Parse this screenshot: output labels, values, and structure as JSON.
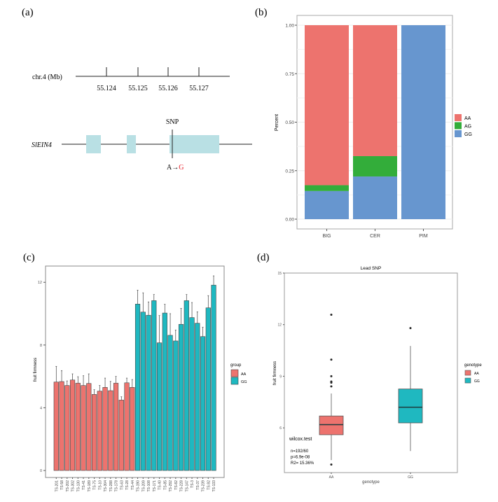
{
  "panel_labels": {
    "a": "(a)",
    "b": "(b)",
    "c": "(c)",
    "d": "(d)"
  },
  "gene_model": {
    "chromosome_label": "chr.4 (Mb)",
    "ticks": [
      "55.124",
      "55.125",
      "55.126",
      "55.127"
    ],
    "gene_name": "SlEIN4",
    "snp_label": "SNP",
    "allele_ref": "A",
    "arrow": "→",
    "allele_alt": "G",
    "exon_color": "#b9e0e4",
    "alt_color": "#e8202a"
  },
  "chart_data": [
    {
      "panel": "b",
      "type": "bar",
      "stacked": true,
      "categories": [
        "BIG",
        "CER",
        "PIM"
      ],
      "ylabel": "Percent",
      "ylim": [
        0,
        1
      ],
      "yticks": [
        "0.00",
        "0.25",
        "0.50",
        "0.75",
        "1.00"
      ],
      "grid": true,
      "legend_position": "right",
      "series": [
        {
          "name": "GG",
          "color": "#6796cf",
          "values": [
            0.145,
            0.22,
            1.0
          ]
        },
        {
          "name": "AG",
          "color": "#33ad3a",
          "values": [
            0.03,
            0.105,
            0.0
          ]
        },
        {
          "name": "AA",
          "color": "#ed736e",
          "values": [
            0.825,
            0.675,
            0.0
          ]
        }
      ],
      "legend_order": [
        "AA",
        "AG",
        "GG"
      ]
    },
    {
      "panel": "c",
      "type": "bar",
      "ylabel": "fruit firmness",
      "ylim": [
        0,
        13
      ],
      "yticks": [
        0,
        4,
        8,
        12
      ],
      "grid": false,
      "legend_title": "group",
      "legend_position": "right",
      "groups": [
        {
          "name": "AA",
          "color": "#ed736e"
        },
        {
          "name": "GG",
          "color": "#1fb8c0"
        }
      ],
      "categories": [
        "TS-201",
        "TS-58",
        "TS-202",
        "TS-302",
        "TS-130",
        "TS-41",
        "TS-189",
        "TS-75",
        "TS-10",
        "TS-304",
        "TS-288",
        "TS-178",
        "TS-63",
        "TS-28",
        "TS-44",
        "TS-190",
        "TS-209",
        "TS-108",
        "TS-171",
        "TS-40",
        "TS-85",
        "TS-292",
        "TS-82",
        "TS-228",
        "TS-147",
        "TS-3",
        "TS-37",
        "TS-239",
        "TS-92",
        "TS-133"
      ],
      "group_of": [
        "AA",
        "AA",
        "AA",
        "AA",
        "AA",
        "AA",
        "AA",
        "AA",
        "AA",
        "AA",
        "AA",
        "AA",
        "AA",
        "AA",
        "AA",
        "GG",
        "GG",
        "GG",
        "GG",
        "GG",
        "GG",
        "GG",
        "GG",
        "GG",
        "GG",
        "GG",
        "GG",
        "GG",
        "GG",
        "GG"
      ],
      "values": [
        5.64,
        5.67,
        5.42,
        5.77,
        5.57,
        5.42,
        5.55,
        4.85,
        5.06,
        5.3,
        5.09,
        5.57,
        4.49,
        5.59,
        5.3,
        10.61,
        10.1,
        9.9,
        10.83,
        8.14,
        10.04,
        8.62,
        8.26,
        9.32,
        10.83,
        9.75,
        9.39,
        8.54,
        10.37,
        11.82
      ],
      "error_upper": [
        6.64,
        6.37,
        5.71,
        6.16,
        5.98,
        6.04,
        6.16,
        5.15,
        5.42,
        5.89,
        5.68,
        6.0,
        4.7,
        5.89,
        5.8,
        11.5,
        11.33,
        10.75,
        11.22,
        9.88,
        10.6,
        10.0,
        8.96,
        10.34,
        11.22,
        10.71,
        10.12,
        9.14,
        11.15,
        12.41
      ]
    },
    {
      "panel": "d",
      "type": "box",
      "title": "Lead SNP",
      "xlabel": "genotype",
      "ylabel": "fruit firmness",
      "ylim": [
        3.4,
        15
      ],
      "yticks": [
        6,
        9,
        12,
        15
      ],
      "categories": [
        "AA",
        "GG"
      ],
      "legend_title": "genotype",
      "legend_position": "right",
      "boxes": [
        {
          "name": "AA",
          "color": "#ed736e",
          "whisker_low": 4.13,
          "q1": 5.6,
          "median": 6.19,
          "q3": 6.69,
          "whisker_high": 8.0,
          "outliers": [
            3.87,
            8.41,
            8.63,
            8.69,
            9.0,
            9.97,
            12.58
          ]
        },
        {
          "name": "GG",
          "color": "#1fb8c0",
          "whisker_low": 4.65,
          "q1": 6.29,
          "median": 7.2,
          "q3": 8.26,
          "whisker_high": 10.76,
          "outliers": [
            11.8
          ]
        }
      ],
      "annotation": [
        "wilcox.test",
        "n=192/60",
        "p=6.9e-08",
        "R2= 15.36%"
      ]
    }
  ]
}
